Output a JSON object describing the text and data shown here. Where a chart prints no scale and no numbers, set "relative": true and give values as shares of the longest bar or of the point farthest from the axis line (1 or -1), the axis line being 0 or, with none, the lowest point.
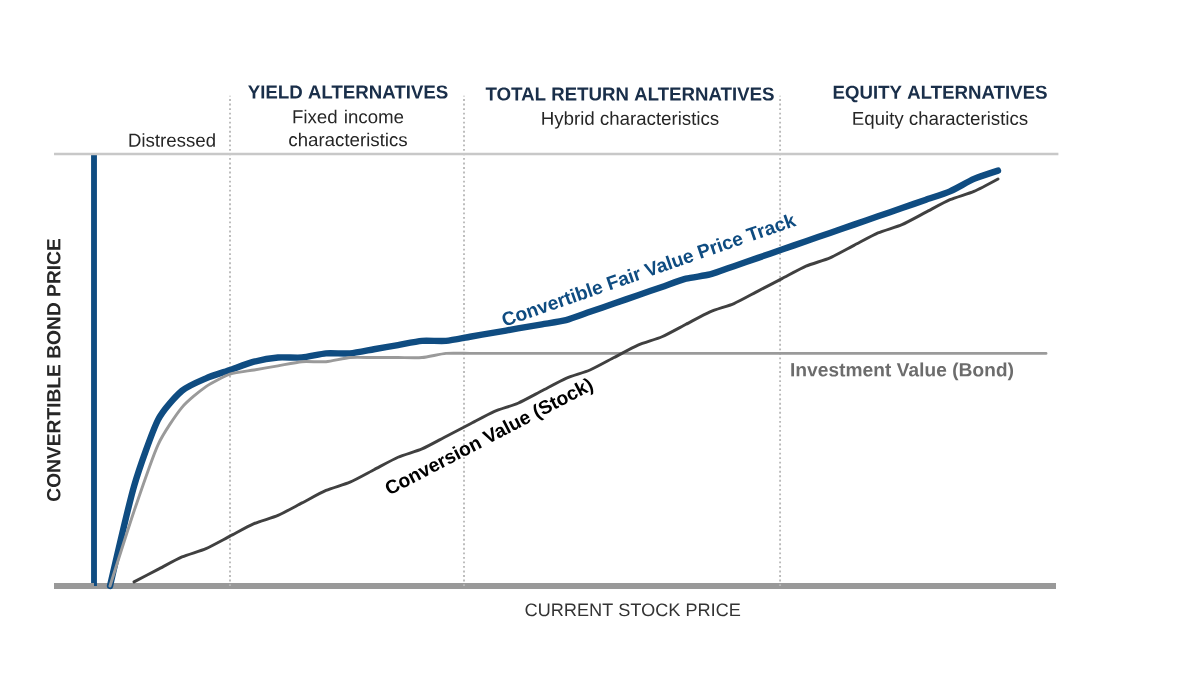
{
  "chart_data": {
    "type": "line",
    "relative": true,
    "xlabel": "CURRENT  STOCK PRICE",
    "ylabel": "CONVERTIBLE  BOND  PRICE",
    "categories": [
      null,
      null,
      null,
      null,
      null,
      null,
      null,
      null,
      null,
      null,
      null,
      null,
      null,
      null,
      null,
      null,
      null,
      null,
      null,
      null,
      null,
      null,
      null,
      null,
      null,
      null,
      null,
      null,
      null,
      null,
      null,
      null,
      null,
      null,
      null,
      null,
      null,
      null,
      null,
      null
    ],
    "series": [
      {
        "name": "Convertible Fair Value Price Track",
        "color": "#0f4c81",
        "values": [
          0,
          0.24,
          0.4,
          0.47,
          0.5,
          0.52,
          0.54,
          0.55,
          0.55,
          0.56,
          0.56,
          0.57,
          0.58,
          0.59,
          0.59,
          0.6,
          0.61,
          0.62,
          0.63,
          0.64,
          0.66,
          0.68,
          0.7,
          0.72,
          0.74,
          0.75,
          0.77,
          0.79,
          0.81,
          0.83,
          0.85,
          0.87,
          0.89,
          0.91,
          0.93,
          0.95,
          0.98,
          1.0,
          null,
          null
        ]
      },
      {
        "name": "Investment Value (Bond)",
        "color": "#9a9a9a",
        "values": [
          0,
          0.18,
          0.34,
          0.43,
          0.48,
          0.51,
          0.52,
          0.53,
          0.54,
          0.54,
          0.55,
          0.55,
          0.55,
          0.55,
          0.56,
          0.56,
          0.56,
          0.56,
          0.56,
          0.56,
          0.56,
          0.56,
          0.56,
          0.56,
          0.56,
          0.56,
          0.56,
          0.56,
          0.56,
          0.56,
          0.56,
          0.56,
          0.56,
          0.56,
          0.56,
          0.56,
          0.56,
          0.56,
          0.56,
          0.56
        ]
      },
      {
        "name": "Conversion Value (Stock)",
        "color": "#404040",
        "values": [
          null,
          0.01,
          0.04,
          0.07,
          0.09,
          0.12,
          0.15,
          0.17,
          0.2,
          0.23,
          0.25,
          0.28,
          0.31,
          0.33,
          0.36,
          0.39,
          0.42,
          0.44,
          0.47,
          0.5,
          0.52,
          0.55,
          0.58,
          0.6,
          0.63,
          0.66,
          0.68,
          0.71,
          0.74,
          0.77,
          0.79,
          0.82,
          0.85,
          0.87,
          0.9,
          0.93,
          0.95,
          0.98,
          null,
          null
        ]
      }
    ],
    "ref_lines": [
      {
        "axis": "y",
        "value": 1.04,
        "color": "#c8c8c8",
        "line_style": "solid"
      }
    ],
    "annotations": [
      "Distressed",
      "YIELD ALTERNATIVES",
      "Fixed income characteristics",
      "TOTAL RETURN ALTERNATIVES",
      "Hybrid characteristics",
      "EQUITY ALTERNATIVES",
      "Equity characteristics"
    ]
  }
}
